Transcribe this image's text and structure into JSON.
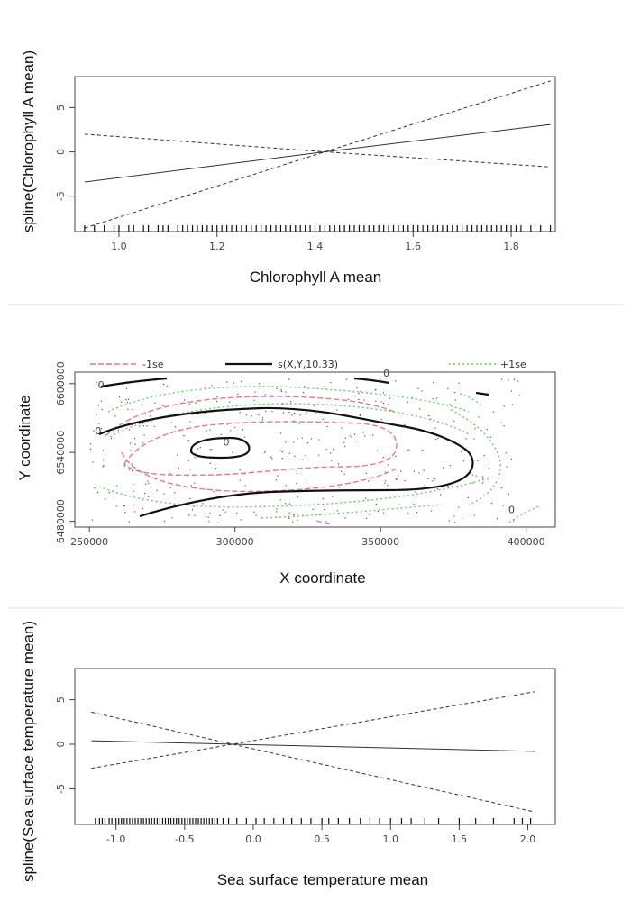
{
  "chart_data": [
    {
      "type": "line",
      "xlabel": "Chlorophyll A mean",
      "ylabel": "spline(Chlorophyll A mean)",
      "xlim": [
        0.91,
        1.89
      ],
      "ylim": [
        -9.0,
        8.5
      ],
      "x_ticks": [
        1.0,
        1.2,
        1.4,
        1.6,
        1.8
      ],
      "x_tick_labels": [
        "1.0",
        "1.2",
        "1.4",
        "1.6",
        "1.8"
      ],
      "y_ticks": [
        -5,
        0,
        5
      ],
      "y_tick_labels": [
        "-5",
        "0",
        "5"
      ],
      "series": [
        {
          "style": "solid",
          "points": [
            [
              0.93,
              -3.4
            ],
            [
              1.42,
              0.0
            ],
            [
              1.88,
              3.1
            ]
          ]
        },
        {
          "style": "dashed",
          "points": [
            [
              0.93,
              -8.6
            ],
            [
              1.42,
              0.0
            ],
            [
              1.88,
              8.0
            ]
          ]
        },
        {
          "style": "dashed",
          "points": [
            [
              0.93,
              2.0
            ],
            [
              1.42,
              0.0
            ],
            [
              1.88,
              -1.7
            ]
          ]
        }
      ],
      "rug": [
        0.93,
        0.95,
        0.97,
        0.99,
        1.0,
        1.02,
        1.03,
        1.05,
        1.06,
        1.08,
        1.09,
        1.1,
        1.12,
        1.13,
        1.14,
        1.15,
        1.16,
        1.17,
        1.18,
        1.19,
        1.2,
        1.21,
        1.22,
        1.23,
        1.24,
        1.25,
        1.26,
        1.27,
        1.28,
        1.29,
        1.3,
        1.31,
        1.32,
        1.33,
        1.34,
        1.35,
        1.36,
        1.37,
        1.38,
        1.39,
        1.4,
        1.41,
        1.42,
        1.43,
        1.44,
        1.45,
        1.46,
        1.47,
        1.48,
        1.49,
        1.5,
        1.51,
        1.52,
        1.53,
        1.54,
        1.55,
        1.56,
        1.57,
        1.58,
        1.59,
        1.6,
        1.61,
        1.62,
        1.63,
        1.64,
        1.65,
        1.66,
        1.67,
        1.68,
        1.69,
        1.7,
        1.71,
        1.72,
        1.73,
        1.74,
        1.75,
        1.76,
        1.77,
        1.78,
        1.79,
        1.8,
        1.81,
        1.82,
        1.84,
        1.86,
        1.88
      ]
    },
    {
      "type": "contour",
      "xlabel": "X coordinate",
      "ylabel": "Y coordinate",
      "xlim": [
        245000,
        410000
      ],
      "ylim": [
        6475000,
        6610000
      ],
      "x_ticks": [
        250000,
        300000,
        350000,
        400000
      ],
      "x_tick_labels": [
        "250000",
        "300000",
        "350000",
        "400000"
      ],
      "y_ticks": [
        6480000,
        6540000,
        6600000
      ],
      "y_tick_labels": [
        "6480000",
        "6540000",
        "6600000"
      ],
      "legend": [
        {
          "label": "-1se",
          "color": "#e07a8a",
          "style": "dashed"
        },
        {
          "label": "s(X,Y,10.33)",
          "color": "#111111",
          "style": "solid"
        },
        {
          "label": "+1se",
          "color": "#66cc66",
          "style": "dotted"
        }
      ],
      "contour_labels": [
        {
          "text": "0",
          "x": 254000,
          "y": 6596000
        },
        {
          "text": "0",
          "x": 253000,
          "y": 6556000
        },
        {
          "text": "0",
          "x": 297000,
          "y": 6546000
        },
        {
          "text": "0",
          "x": 352000,
          "y": 6606000
        },
        {
          "text": "0",
          "x": 395000,
          "y": 6487000
        }
      ]
    },
    {
      "type": "line",
      "xlabel": "Sea surface temperature mean",
      "ylabel": "spline(Sea surface temperature mean)",
      "xlim": [
        -1.3,
        2.2
      ],
      "ylim": [
        -9.0,
        8.5
      ],
      "x_ticks": [
        -1.0,
        -0.5,
        0.0,
        0.5,
        1.0,
        1.5,
        2.0
      ],
      "x_tick_labels": [
        "-1.0",
        "-0.5",
        "0.0",
        "0.5",
        "1.0",
        "1.5",
        "2.0"
      ],
      "y_ticks": [
        -5,
        0,
        5
      ],
      "y_tick_labels": [
        "-5",
        "0",
        "5"
      ],
      "series": [
        {
          "style": "solid",
          "points": [
            [
              -1.18,
              0.4
            ],
            [
              -0.15,
              0.0
            ],
            [
              2.05,
              -0.8
            ]
          ]
        },
        {
          "style": "dashed",
          "points": [
            [
              -1.18,
              3.6
            ],
            [
              -0.15,
              0.0
            ],
            [
              2.05,
              -7.6
            ]
          ]
        },
        {
          "style": "dashed",
          "points": [
            [
              -1.18,
              -2.7
            ],
            [
              -0.15,
              0.0
            ],
            [
              2.05,
              5.9
            ]
          ]
        }
      ],
      "rug": [
        -1.15,
        -1.12,
        -1.1,
        -1.08,
        -1.05,
        -1.03,
        -1.0,
        -0.98,
        -0.96,
        -0.94,
        -0.92,
        -0.9,
        -0.88,
        -0.86,
        -0.84,
        -0.82,
        -0.8,
        -0.78,
        -0.76,
        -0.74,
        -0.72,
        -0.7,
        -0.68,
        -0.66,
        -0.64,
        -0.62,
        -0.6,
        -0.58,
        -0.56,
        -0.54,
        -0.52,
        -0.5,
        -0.48,
        -0.46,
        -0.44,
        -0.42,
        -0.4,
        -0.38,
        -0.36,
        -0.34,
        -0.32,
        -0.3,
        -0.28,
        -0.26,
        -0.22,
        -0.18,
        -0.12,
        -0.05,
        0.02,
        0.08,
        0.15,
        0.22,
        0.28,
        0.35,
        0.42,
        0.5,
        0.55,
        0.62,
        0.7,
        0.78,
        0.85,
        0.92,
        1.0,
        1.08,
        1.15,
        1.25,
        1.35,
        1.5,
        1.62,
        1.75,
        1.9,
        1.96,
        2.02
      ]
    }
  ]
}
